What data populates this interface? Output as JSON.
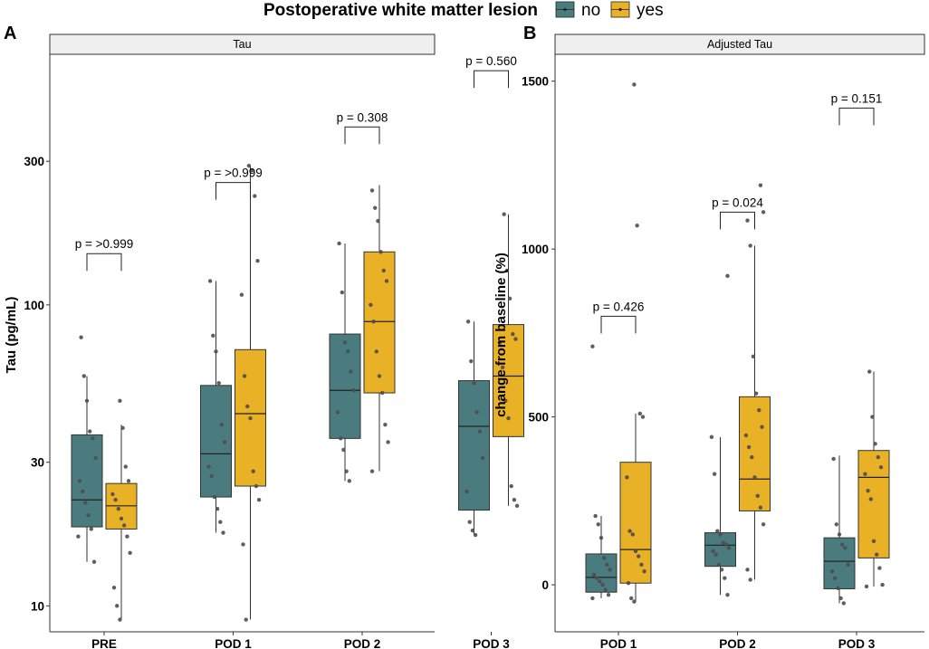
{
  "legend": {
    "title": "Postoperative white matter lesion",
    "items": [
      {
        "label": "no",
        "color": "#4a7c7f"
      },
      {
        "label": "yes",
        "color": "#e9b125"
      }
    ]
  },
  "chart_data": [
    {
      "type": "boxplot",
      "panel_label": "A",
      "title": "Tau",
      "xlabel": "",
      "ylabel": "Tau (pg/mL)",
      "yscale": "log10",
      "ylim": [
        8.2,
        680
      ],
      "yticks": [
        {
          "value": 10,
          "label": "10"
        },
        {
          "value": 30,
          "label": "30"
        },
        {
          "value": 100,
          "label": "100"
        },
        {
          "value": 300,
          "label": "300"
        }
      ],
      "categories": [
        "PRE",
        "POD 1",
        "POD 2",
        "POD 3"
      ],
      "series": [
        {
          "name": "no",
          "boxes": [
            {
              "min": 14.0,
              "q1": 18.3,
              "median": 22.5,
              "q3": 37.0,
              "max": 58.0
            },
            {
              "min": 17.5,
              "q1": 23.0,
              "median": 32.0,
              "q3": 54.0,
              "max": 120.0
            },
            {
              "min": 26.0,
              "q1": 36.0,
              "median": 52.0,
              "q3": 80.0,
              "max": 160.0
            },
            {
              "min": 17.2,
              "q1": 20.8,
              "median": 39.5,
              "q3": 56.0,
              "max": 88.0
            }
          ],
          "points": [
            [
              17.0,
              14.0,
              18.0,
              20.0,
              22.0,
              24.0,
              26.0,
              31.0,
              36.0,
              38.0,
              48.0,
              58.0,
              78.0
            ],
            [
              17.5,
              19.0,
              21.0,
              23.0,
              27.0,
              29.0,
              35.0,
              40.0,
              55.0,
              70.0,
              79.0,
              120.0
            ],
            [
              26.0,
              28.0,
              33.0,
              36.0,
              44.0,
              52.0,
              60.0,
              70.0,
              75.0,
              110.0,
              160.0
            ],
            [
              17.2,
              17.8,
              19.0,
              24.0,
              31.0,
              38.0,
              44.0,
              55.0,
              65.0,
              88.0
            ]
          ]
        },
        {
          "name": "yes",
          "boxes": [
            {
              "min": 9.0,
              "q1": 18.0,
              "median": 21.5,
              "q3": 25.5,
              "max": 40.0
            },
            {
              "min": 9.0,
              "q1": 25.0,
              "median": 43.5,
              "q3": 71.0,
              "max": 290.0
            },
            {
              "min": 28.0,
              "q1": 51.0,
              "median": 88.0,
              "q3": 150.0,
              "max": 250.0
            },
            {
              "min": 21.5,
              "q1": 36.5,
              "median": 58.0,
              "q3": 86.0,
              "max": 200.0
            }
          ],
          "points": [
            [
              9.0,
              10.0,
              11.5,
              15.0,
              17.0,
              18.5,
              19.5,
              21.0,
              22.5,
              23.5,
              26.0,
              29.0,
              39.0,
              48.0
            ],
            [
              9.0,
              16.0,
              22.5,
              25.0,
              28.0,
              42.0,
              46.0,
              58.0,
              108.0,
              140.0,
              230.0,
              280.0,
              290.0
            ],
            [
              28.0,
              35.0,
              40.0,
              51.0,
              58.0,
              70.0,
              88.0,
              100.0,
              120.0,
              130.0,
              150.0,
              190.0,
              210.0,
              240.0
            ],
            [
              21.5,
              22.5,
              25.0,
              42.0,
              48.0,
              62.0,
              75.0,
              77.0,
              80.0,
              105.0,
              130.0,
              200.0
            ]
          ]
        }
      ],
      "annotations": [
        {
          "category": "PRE",
          "text": "p = >0.999",
          "y": 148
        },
        {
          "category": "POD 1",
          "text": "p = >0.999",
          "y": 255
        },
        {
          "category": "POD 2",
          "text": "p = 0.308",
          "y": 390
        },
        {
          "category": "POD 3",
          "text": "p = 0.560",
          "y": 600
        }
      ]
    },
    {
      "type": "boxplot",
      "panel_label": "B",
      "title": "Adjusted Tau",
      "xlabel": "",
      "ylabel": "change from baseline (%)",
      "yscale": "linear",
      "ylim": [
        -140,
        1580
      ],
      "yticks": [
        {
          "value": 0,
          "label": "0"
        },
        {
          "value": 500,
          "label": "500"
        },
        {
          "value": 1000,
          "label": "1000"
        },
        {
          "value": 1500,
          "label": "1500"
        }
      ],
      "categories": [
        "POD 1",
        "POD 2",
        "POD 3"
      ],
      "series": [
        {
          "name": "no",
          "boxes": [
            {
              "min": -40,
              "q1": -22,
              "median": 22,
              "q3": 92,
              "max": 205
            },
            {
              "min": -30,
              "q1": 55,
              "median": 118,
              "q3": 155,
              "max": 440
            },
            {
              "min": -55,
              "q1": -12,
              "median": 70,
              "q3": 140,
              "max": 385
            }
          ],
          "points": [
            [
              -40,
              -30,
              -15,
              0,
              10,
              20,
              30,
              45,
              60,
              80,
              140,
              180,
              205,
              710
            ],
            [
              -30,
              20,
              45,
              60,
              90,
              100,
              110,
              120,
              125,
              150,
              160,
              330,
              440,
              920
            ],
            [
              -55,
              -40,
              -10,
              20,
              40,
              60,
              110,
              120,
              150,
              180,
              375
            ]
          ]
        },
        {
          "name": "yes",
          "boxes": [
            {
              "min": -50,
              "q1": 5,
              "median": 105,
              "q3": 365,
              "max": 510
            },
            {
              "min": 15,
              "q1": 220,
              "median": 315,
              "q3": 560,
              "max": 1010
            },
            {
              "min": -5,
              "q1": 80,
              "median": 320,
              "q3": 400,
              "max": 635
            }
          ],
          "points": [
            [
              -50,
              -40,
              5,
              40,
              60,
              85,
              100,
              150,
              160,
              320,
              500,
              510,
              1070,
              1490
            ],
            [
              15,
              45,
              180,
              230,
              265,
              320,
              380,
              410,
              445,
              470,
              520,
              570,
              680,
              1010,
              1085,
              1110,
              1190
            ],
            [
              -5,
              0,
              50,
              90,
              130,
              255,
              280,
              330,
              350,
              380,
              420,
              500,
              635
            ]
          ]
        }
      ],
      "annotations": [
        {
          "category": "POD 1",
          "text": "p = 0.426",
          "y": 800
        },
        {
          "category": "POD 2",
          "text": "p = 0.024",
          "y": 1110
        },
        {
          "category": "POD 3",
          "text": "p = 0.151",
          "y": 1420
        }
      ]
    }
  ]
}
